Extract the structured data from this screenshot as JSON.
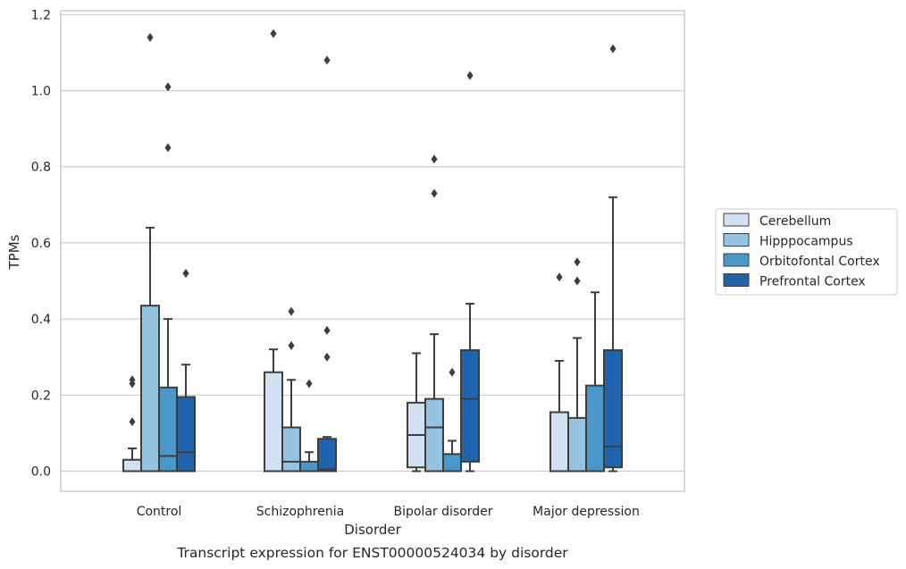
{
  "chart_data": {
    "type": "box",
    "title": "",
    "caption": "Transcript expression for ENST00000524034 by disorder",
    "xlabel": "Disorder",
    "ylabel": "TPMs",
    "categories": [
      "Control",
      "Schizophrenia",
      "Bipolar disorder",
      "Major depression"
    ],
    "ylim": [
      -0.055,
      1.21
    ],
    "yticks": [
      0.0,
      0.2,
      0.4,
      0.6,
      0.8,
      1.0,
      1.2
    ],
    "ytick_labels": [
      "0.0",
      "0.2",
      "0.4",
      "0.6",
      "0.8",
      "1.0",
      "1.2"
    ],
    "grid": true,
    "legend_position": "right",
    "series": [
      {
        "name": "Cerebellum",
        "color": "#d0e1f2",
        "boxes": [
          {
            "whislo": 0.0,
            "q1": 0.0,
            "med": 0.0,
            "q3": 0.03,
            "whishi": 0.06,
            "fliers": [
              0.13,
              0.23,
              0.24
            ]
          },
          {
            "whislo": 0.0,
            "q1": 0.0,
            "med": 0.0,
            "q3": 0.26,
            "whishi": 0.32,
            "fliers": [
              1.15
            ]
          },
          {
            "whislo": 0.0,
            "q1": 0.01,
            "med": 0.095,
            "q3": 0.18,
            "whishi": 0.31,
            "fliers": []
          },
          {
            "whislo": 0.0,
            "q1": 0.0,
            "med": 0.0,
            "q3": 0.155,
            "whishi": 0.29,
            "fliers": [
              0.51
            ]
          }
        ]
      },
      {
        "name": "Hipppocampus",
        "color": "#94c4df",
        "boxes": [
          {
            "whislo": 0.0,
            "q1": 0.0,
            "med": 0.0,
            "q3": 0.435,
            "whishi": 0.64,
            "fliers": [
              1.14
            ]
          },
          {
            "whislo": 0.0,
            "q1": 0.0,
            "med": 0.025,
            "q3": 0.115,
            "whishi": 0.24,
            "fliers": [
              0.33,
              0.42
            ]
          },
          {
            "whislo": 0.0,
            "q1": 0.0,
            "med": 0.115,
            "q3": 0.19,
            "whishi": 0.36,
            "fliers": [
              0.73,
              0.82
            ]
          },
          {
            "whislo": 0.0,
            "q1": 0.0,
            "med": 0.0,
            "q3": 0.14,
            "whishi": 0.35,
            "fliers": [
              0.5,
              0.55
            ]
          }
        ]
      },
      {
        "name": "Orbitofontal Cortex",
        "color": "#4a98c9",
        "boxes": [
          {
            "whislo": 0.0,
            "q1": 0.0,
            "med": 0.04,
            "q3": 0.22,
            "whishi": 0.4,
            "fliers": [
              0.85,
              1.01
            ]
          },
          {
            "whislo": 0.0,
            "q1": 0.0,
            "med": 0.0,
            "q3": 0.025,
            "whishi": 0.05,
            "fliers": [
              0.23
            ]
          },
          {
            "whislo": 0.0,
            "q1": 0.0,
            "med": 0.0,
            "q3": 0.045,
            "whishi": 0.08,
            "fliers": [
              0.26
            ]
          },
          {
            "whislo": 0.0,
            "q1": 0.0,
            "med": 0.0,
            "q3": 0.225,
            "whishi": 0.47,
            "fliers": []
          }
        ]
      },
      {
        "name": "Prefrontal Cortex",
        "color": "#2164ab",
        "boxes": [
          {
            "whislo": 0.0,
            "q1": 0.0,
            "med": 0.05,
            "q3": 0.195,
            "whishi": 0.28,
            "fliers": [
              0.52
            ]
          },
          {
            "whislo": 0.0,
            "q1": 0.0,
            "med": 0.005,
            "q3": 0.085,
            "whishi": 0.09,
            "fliers": [
              0.3,
              0.37,
              1.08
            ]
          },
          {
            "whislo": 0.0,
            "q1": 0.025,
            "med": 0.19,
            "q3": 0.318,
            "whishi": 0.44,
            "fliers": [
              1.04
            ]
          },
          {
            "whislo": 0.0,
            "q1": 0.01,
            "med": 0.065,
            "q3": 0.318,
            "whishi": 0.72,
            "fliers": [
              1.11
            ]
          }
        ]
      }
    ]
  }
}
